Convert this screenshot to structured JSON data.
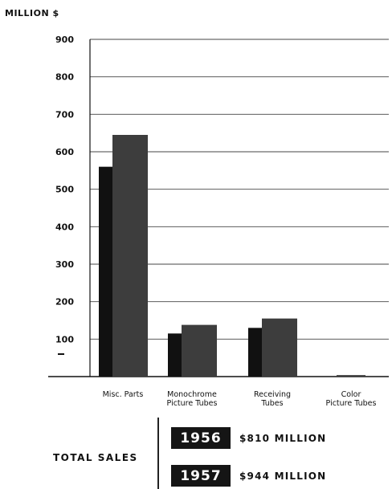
{
  "chart_data": {
    "type": "bar",
    "ylabel": "MILLION $",
    "ylim": [
      0,
      900
    ],
    "yticks": [
      100,
      200,
      300,
      400,
      500,
      600,
      700,
      800,
      900
    ],
    "categories": [
      "Misc. Parts",
      [
        "Monochrome",
        "Picture Tubes"
      ],
      [
        "Receiving",
        "Tubes"
      ],
      [
        "Color",
        "Picture Tubes"
      ]
    ],
    "series": [
      {
        "name": "1956",
        "values": [
          560,
          115,
          130,
          0
        ],
        "color": "#111111"
      },
      {
        "name": "1957",
        "values": [
          645,
          138,
          155,
          4
        ],
        "color": "#3d3d3d"
      }
    ],
    "grid": true
  },
  "legend": {
    "title": "TOTAL SALES",
    "items": [
      {
        "year": "1956",
        "total": "$810 MILLION"
      },
      {
        "year": "1957",
        "total": "$944 MILLION"
      }
    ]
  }
}
